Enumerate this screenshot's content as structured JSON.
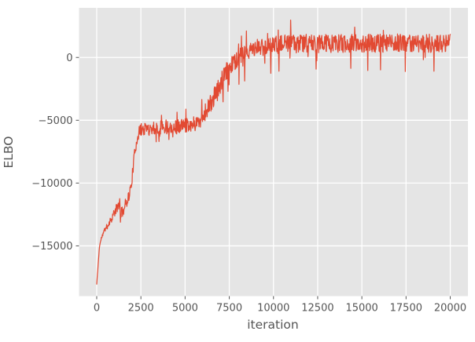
{
  "figure": {
    "background": "#ffffff"
  },
  "chart_data": {
    "type": "line",
    "title": "",
    "xlabel": "iteration",
    "ylabel": "ELBO",
    "xlim": [
      -1000,
      21000
    ],
    "ylim": [
      -19000,
      3950
    ],
    "grid": true,
    "legend": false,
    "style": "ggplot",
    "colors": {
      "plot_bg": "#E5E5E5",
      "grid": "#FFFFFF",
      "line": "#E24A33",
      "text": "#555555",
      "tick": "#555555"
    },
    "xticks": {
      "values": [
        0,
        2500,
        5000,
        7500,
        10000,
        12500,
        15000,
        17500,
        20000
      ],
      "labels": [
        "0",
        "2500",
        "5000",
        "7500",
        "10000",
        "12500",
        "15000",
        "17500",
        "20000"
      ]
    },
    "yticks": {
      "values": [
        0,
        -5000,
        -10000,
        -15000
      ],
      "labels": [
        "0",
        "−5000",
        "−10000",
        "−15000"
      ]
    },
    "series": [
      {
        "name": "ELBO",
        "color": "#E24A33",
        "x_range": [
          0,
          20000
        ],
        "n_points": 1000,
        "seed": 11,
        "spike_prob": 0.045,
        "trend": [
          [
            0,
            -18050
          ],
          [
            80,
            -16500
          ],
          [
            160,
            -15000
          ],
          [
            280,
            -14300
          ],
          [
            450,
            -13800
          ],
          [
            650,
            -13300
          ],
          [
            800,
            -12900
          ],
          [
            950,
            -12500
          ],
          [
            1100,
            -12100
          ],
          [
            1250,
            -11700
          ],
          [
            1400,
            -12400
          ],
          [
            1550,
            -12000
          ],
          [
            1700,
            -11400
          ],
          [
            1850,
            -10900
          ],
          [
            1950,
            -10200
          ],
          [
            2050,
            -8900
          ],
          [
            2150,
            -7600
          ],
          [
            2300,
            -6300
          ],
          [
            2450,
            -5850
          ],
          [
            2700,
            -5700
          ],
          [
            3200,
            -5600
          ],
          [
            3800,
            -5500
          ],
          [
            4400,
            -5550
          ],
          [
            5000,
            -5400
          ],
          [
            5600,
            -5250
          ],
          [
            5800,
            -5050
          ],
          [
            6000,
            -4650
          ],
          [
            6300,
            -4000
          ],
          [
            6600,
            -3300
          ],
          [
            6900,
            -2450
          ],
          [
            7200,
            -1550
          ],
          [
            7500,
            -750
          ],
          [
            7800,
            -300
          ],
          [
            8200,
            150
          ],
          [
            8700,
            550
          ],
          [
            9200,
            800
          ],
          [
            10000,
            1000
          ],
          [
            11000,
            1100
          ],
          [
            14000,
            1100
          ],
          [
            17000,
            1150
          ],
          [
            20000,
            1100
          ]
        ],
        "noise_amp": [
          [
            0,
            60
          ],
          [
            200,
            120
          ],
          [
            400,
            220
          ],
          [
            700,
            300
          ],
          [
            1000,
            420
          ],
          [
            1400,
            500
          ],
          [
            1800,
            520
          ],
          [
            2100,
            500
          ],
          [
            2400,
            560
          ],
          [
            3000,
            640
          ],
          [
            4000,
            650
          ],
          [
            5200,
            620
          ],
          [
            5800,
            700
          ],
          [
            6300,
            820
          ],
          [
            7000,
            900
          ],
          [
            7600,
            820
          ],
          [
            8300,
            760
          ],
          [
            9000,
            780
          ],
          [
            10000,
            820
          ],
          [
            20000,
            820
          ]
        ]
      }
    ]
  }
}
